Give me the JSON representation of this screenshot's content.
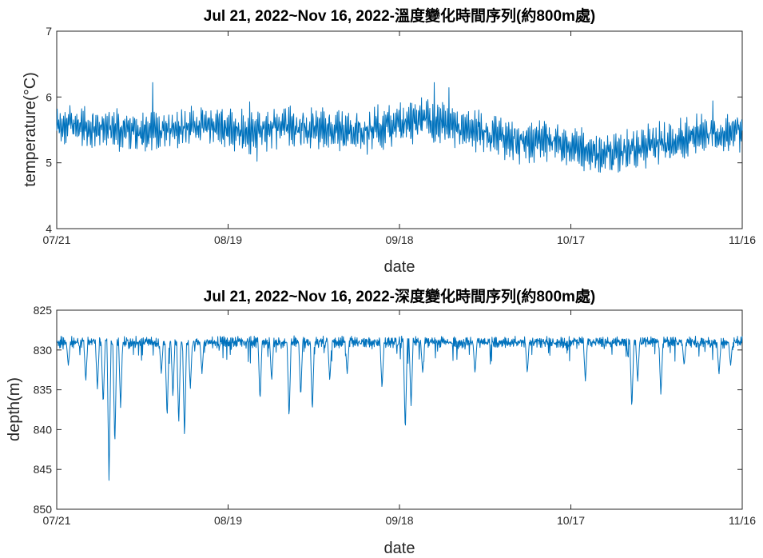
{
  "chart_data": [
    {
      "type": "line",
      "title": "Jul 21, 2022~Nov 16, 2022-溫度變化時間序列(約800m處)",
      "xlabel": "date",
      "ylabel": "temperature(°C)",
      "ylim": [
        4,
        7
      ],
      "y_ticks": [
        "4",
        "5",
        "6",
        "7"
      ],
      "x_ticks": [
        "07/21",
        "08/19",
        "09/18",
        "10/17",
        "11/16"
      ],
      "x_range": [
        "2022-07-21",
        "2022-11-16"
      ],
      "line_color": "#0072BD",
      "grid": false,
      "series": [
        {
          "x": [
            "2022-07-21",
            "2022-07-24",
            "2022-07-27",
            "2022-07-30",
            "2022-08-02",
            "2022-08-05",
            "2022-08-08",
            "2022-08-11",
            "2022-08-14",
            "2022-08-17",
            "2022-08-20",
            "2022-08-23",
            "2022-08-26",
            "2022-08-29",
            "2022-09-01",
            "2022-09-04",
            "2022-09-07",
            "2022-09-10",
            "2022-09-13",
            "2022-09-16",
            "2022-09-19",
            "2022-09-22",
            "2022-09-25",
            "2022-09-28",
            "2022-10-01",
            "2022-10-04",
            "2022-10-07",
            "2022-10-10",
            "2022-10-13",
            "2022-10-16",
            "2022-10-19",
            "2022-10-22",
            "2022-10-25",
            "2022-10-28",
            "2022-10-31",
            "2022-11-03",
            "2022-11-06",
            "2022-11-09",
            "2022-11-12",
            "2022-11-16"
          ],
          "values": [
            5.55,
            5.6,
            5.5,
            5.55,
            5.5,
            5.45,
            5.5,
            5.55,
            5.6,
            5.55,
            5.5,
            5.45,
            5.5,
            5.55,
            5.5,
            5.55,
            5.5,
            5.45,
            5.5,
            5.55,
            5.6,
            5.65,
            5.6,
            5.5,
            5.45,
            5.4,
            5.35,
            5.3,
            5.35,
            5.3,
            5.2,
            5.15,
            5.15,
            5.2,
            5.25,
            5.3,
            5.35,
            5.4,
            5.45,
            5.45
          ]
        }
      ]
    },
    {
      "type": "line",
      "title": "Jul 21, 2022~Nov 16, 2022-深度變化時間序列(約800m處)",
      "xlabel": "date",
      "ylabel": "depth(m)",
      "ylim": [
        825,
        850
      ],
      "y_reversed": true,
      "y_ticks": [
        "825",
        "830",
        "835",
        "840",
        "845",
        "850"
      ],
      "x_ticks": [
        "07/21",
        "08/19",
        "09/18",
        "10/17",
        "11/16"
      ],
      "x_range": [
        "2022-07-21",
        "2022-11-16"
      ],
      "line_color": "#0072BD",
      "grid": false,
      "baseline": 829,
      "spikes": [
        {
          "x": "2022-07-23",
          "value": 832
        },
        {
          "x": "2022-07-26",
          "value": 834
        },
        {
          "x": "2022-07-28",
          "value": 835
        },
        {
          "x": "2022-07-29",
          "value": 837
        },
        {
          "x": "2022-07-30",
          "value": 846.5
        },
        {
          "x": "2022-07-31",
          "value": 842.3
        },
        {
          "x": "2022-08-01",
          "value": 837.5
        },
        {
          "x": "2022-08-08",
          "value": 833
        },
        {
          "x": "2022-08-09",
          "value": 838.7
        },
        {
          "x": "2022-08-10",
          "value": 836
        },
        {
          "x": "2022-08-11",
          "value": 839.5
        },
        {
          "x": "2022-08-12",
          "value": 841.3
        },
        {
          "x": "2022-08-13",
          "value": 835
        },
        {
          "x": "2022-08-15",
          "value": 833
        },
        {
          "x": "2022-08-25",
          "value": 836.5
        },
        {
          "x": "2022-08-27",
          "value": 834
        },
        {
          "x": "2022-08-30",
          "value": 838.8
        },
        {
          "x": "2022-09-01",
          "value": 836
        },
        {
          "x": "2022-09-03",
          "value": 837.9
        },
        {
          "x": "2022-09-06",
          "value": 834
        },
        {
          "x": "2022-09-09",
          "value": 833
        },
        {
          "x": "2022-09-15",
          "value": 835
        },
        {
          "x": "2022-09-19",
          "value": 840.5
        },
        {
          "x": "2022-09-20",
          "value": 837.2
        },
        {
          "x": "2022-09-22",
          "value": 833
        },
        {
          "x": "2022-10-01",
          "value": 833
        },
        {
          "x": "2022-10-10",
          "value": 833
        },
        {
          "x": "2022-10-20",
          "value": 834
        },
        {
          "x": "2022-10-28",
          "value": 837.5
        },
        {
          "x": "2022-10-29",
          "value": 834
        },
        {
          "x": "2022-11-02",
          "value": 835.8
        },
        {
          "x": "2022-11-06",
          "value": 832
        },
        {
          "x": "2022-11-12",
          "value": 833.2
        },
        {
          "x": "2022-11-14",
          "value": 832
        }
      ]
    }
  ]
}
